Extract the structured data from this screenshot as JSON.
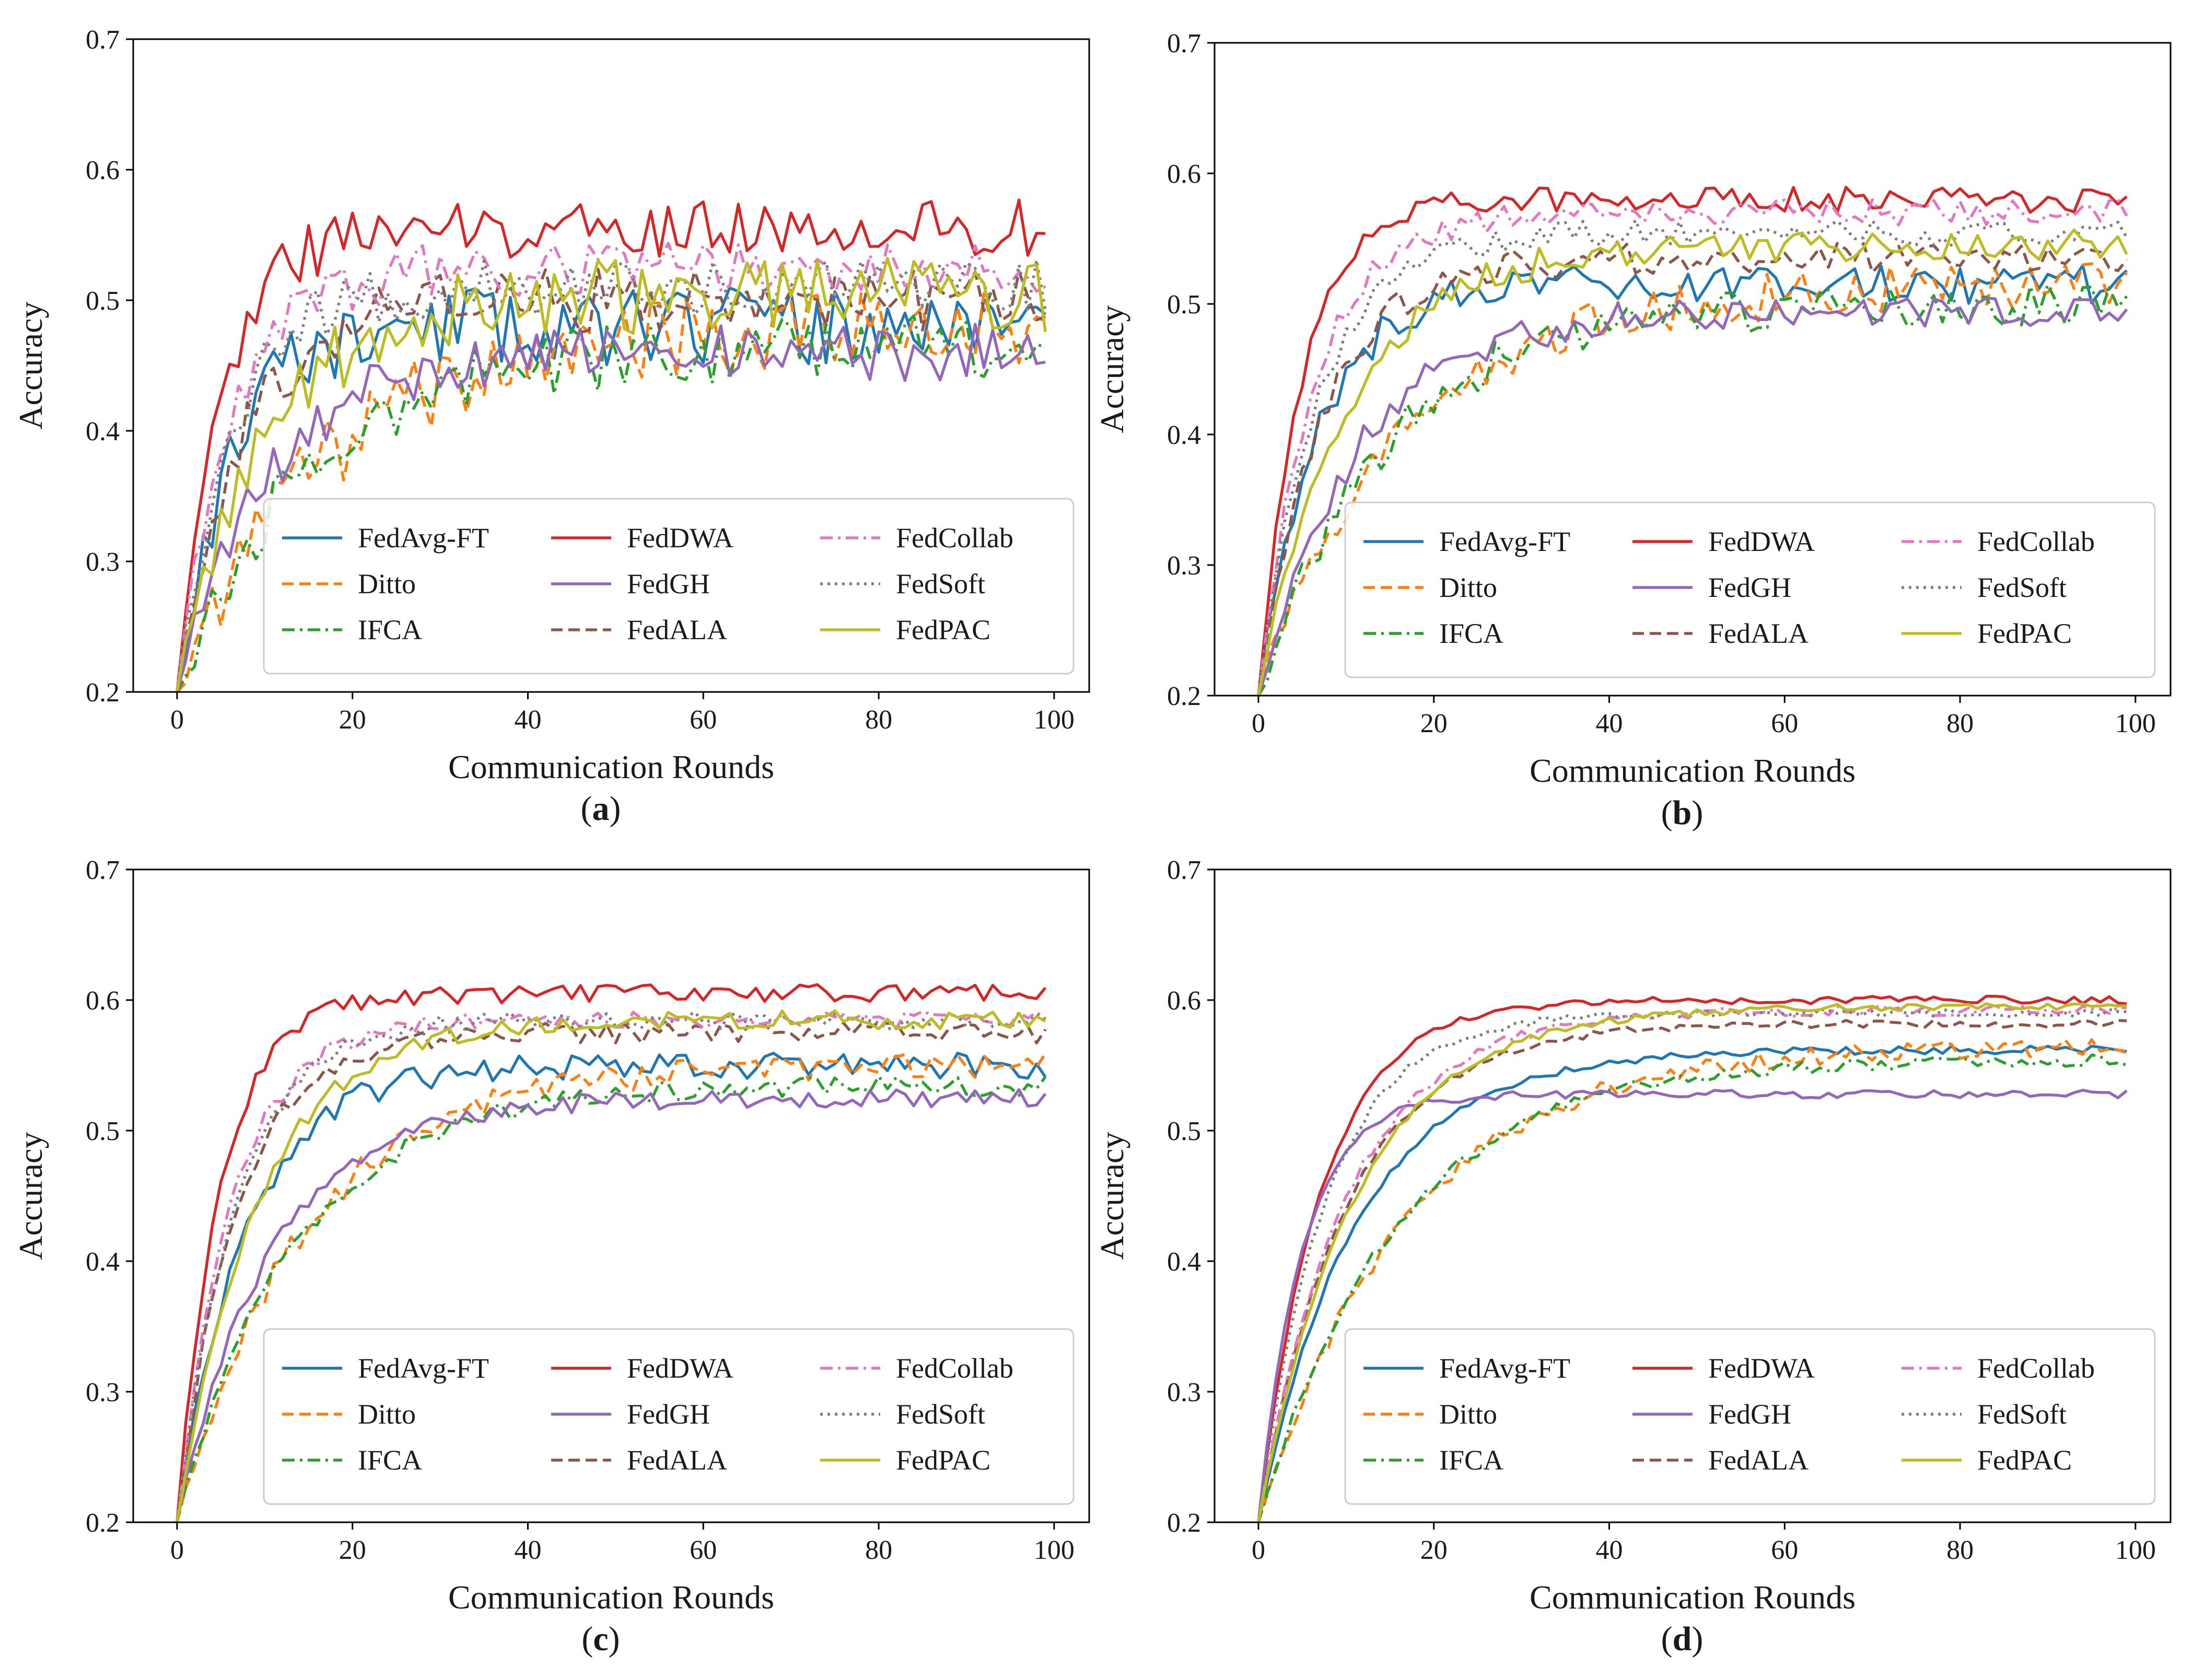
{
  "colors": {
    "FedAvg-FT": "#1f77b4",
    "Ditto": "#ff7f0e",
    "IFCA": "#2ca02c",
    "FedDWA": "#d62728",
    "FedGH": "#9467bd",
    "FedALA": "#8c564b",
    "FedCollab": "#e377c2",
    "FedSoft": "#7f7f7f",
    "FedPAC": "#bcbd22"
  },
  "chart_data": [
    {
      "type": "line",
      "panel": "a",
      "caption_letter": "a",
      "xlabel": "Communication Rounds",
      "ylabel": "Accuracy",
      "xlim": [
        -5,
        104
      ],
      "ylim": [
        0.2,
        0.7
      ],
      "xticks": [
        "0",
        "20",
        "40",
        "60",
        "80",
        "100"
      ],
      "yticks": [
        "0.2",
        "0.3",
        "0.4",
        "0.5",
        "0.6",
        "0.7"
      ],
      "legend": {
        "location": "lower-right",
        "columns": 3
      },
      "series": [
        {
          "name": "FedAvg-FT",
          "style": "solid",
          "start": 0.2,
          "final": 0.48,
          "rate": 0.16,
          "noise": 0.03,
          "seed": 11
        },
        {
          "name": "Ditto",
          "style": "dashed",
          "start": 0.2,
          "final": 0.48,
          "rate": 0.06,
          "noise": 0.03,
          "seed": 12
        },
        {
          "name": "IFCA",
          "style": "dashdot",
          "start": 0.2,
          "final": 0.465,
          "rate": 0.07,
          "noise": 0.025,
          "seed": 13
        },
        {
          "name": "FedDWA",
          "style": "solid",
          "start": 0.2,
          "final": 0.555,
          "rate": 0.2,
          "noise": 0.022,
          "seed": 14
        },
        {
          "name": "FedGH",
          "style": "solid",
          "start": 0.2,
          "final": 0.46,
          "rate": 0.1,
          "noise": 0.022,
          "seed": 15
        },
        {
          "name": "FedALA",
          "style": "dashed",
          "start": 0.2,
          "final": 0.5,
          "rate": 0.14,
          "noise": 0.025,
          "seed": 16
        },
        {
          "name": "FedCollab",
          "style": "dashdot",
          "start": 0.2,
          "final": 0.525,
          "rate": 0.17,
          "noise": 0.022,
          "seed": 17
        },
        {
          "name": "FedSoft",
          "style": "dotted",
          "start": 0.2,
          "final": 0.51,
          "rate": 0.16,
          "noise": 0.022,
          "seed": 18
        },
        {
          "name": "FedPAC",
          "style": "solid",
          "start": 0.2,
          "final": 0.505,
          "rate": 0.1,
          "noise": 0.03,
          "seed": 19
        }
      ]
    },
    {
      "type": "line",
      "panel": "b",
      "caption_letter": "b",
      "xlabel": "Communication Rounds",
      "ylabel": "Accuracy",
      "xlim": [
        -5,
        104
      ],
      "ylim": [
        0.2,
        0.7
      ],
      "xticks": [
        "0",
        "20",
        "40",
        "60",
        "80",
        "100"
      ],
      "yticks": [
        "0.2",
        "0.3",
        "0.4",
        "0.5",
        "0.6",
        "0.7"
      ],
      "legend": {
        "location": "lower-right",
        "columns": 3
      },
      "series": [
        {
          "name": "FedAvg-FT",
          "style": "solid",
          "start": 0.2,
          "final": 0.515,
          "rate": 0.15,
          "noise": 0.015,
          "seed": 21
        },
        {
          "name": "Ditto",
          "style": "dashed",
          "start": 0.2,
          "final": 0.515,
          "rate": 0.06,
          "noise": 0.018,
          "seed": 22
        },
        {
          "name": "IFCA",
          "style": "dashdot",
          "start": 0.2,
          "final": 0.5,
          "rate": 0.07,
          "noise": 0.016,
          "seed": 23
        },
        {
          "name": "FedDWA",
          "style": "solid",
          "start": 0.2,
          "final": 0.58,
          "rate": 0.2,
          "noise": 0.01,
          "seed": 24
        },
        {
          "name": "FedGH",
          "style": "solid",
          "start": 0.2,
          "final": 0.495,
          "rate": 0.09,
          "noise": 0.013,
          "seed": 25
        },
        {
          "name": "FedALA",
          "style": "dashed",
          "start": 0.2,
          "final": 0.535,
          "rate": 0.14,
          "noise": 0.012,
          "seed": 26
        },
        {
          "name": "FedCollab",
          "style": "dashdot",
          "start": 0.2,
          "final": 0.57,
          "rate": 0.16,
          "noise": 0.01,
          "seed": 27
        },
        {
          "name": "FedSoft",
          "style": "dotted",
          "start": 0.2,
          "final": 0.555,
          "rate": 0.15,
          "noise": 0.01,
          "seed": 28
        },
        {
          "name": "FedPAC",
          "style": "solid",
          "start": 0.2,
          "final": 0.545,
          "rate": 0.1,
          "noise": 0.012,
          "seed": 29
        }
      ]
    },
    {
      "type": "line",
      "panel": "c",
      "caption_letter": "c",
      "xlabel": "Communication Rounds",
      "ylabel": "Accuracy",
      "xlim": [
        -5,
        104
      ],
      "ylim": [
        0.2,
        0.7
      ],
      "xticks": [
        "0",
        "20",
        "40",
        "60",
        "80",
        "100"
      ],
      "yticks": [
        "0.2",
        "0.3",
        "0.4",
        "0.5",
        "0.6",
        "0.7"
      ],
      "legend": {
        "location": "lower-right",
        "columns": 3
      },
      "series": [
        {
          "name": "FedAvg-FT",
          "style": "solid",
          "start": 0.2,
          "final": 0.55,
          "rate": 0.13,
          "noise": 0.01,
          "seed": 31
        },
        {
          "name": "Ditto",
          "style": "dashed",
          "start": 0.2,
          "final": 0.55,
          "rate": 0.07,
          "noise": 0.01,
          "seed": 32
        },
        {
          "name": "IFCA",
          "style": "dashdot",
          "start": 0.2,
          "final": 0.535,
          "rate": 0.075,
          "noise": 0.008,
          "seed": 33
        },
        {
          "name": "FedDWA",
          "style": "solid",
          "start": 0.2,
          "final": 0.605,
          "rate": 0.2,
          "noise": 0.007,
          "seed": 34
        },
        {
          "name": "FedGH",
          "style": "solid",
          "start": 0.2,
          "final": 0.525,
          "rate": 0.095,
          "noise": 0.007,
          "seed": 35
        },
        {
          "name": "FedALA",
          "style": "dashed",
          "start": 0.2,
          "final": 0.575,
          "rate": 0.15,
          "noise": 0.008,
          "seed": 36
        },
        {
          "name": "FedCollab",
          "style": "dashdot",
          "start": 0.2,
          "final": 0.585,
          "rate": 0.16,
          "noise": 0.007,
          "seed": 37
        },
        {
          "name": "FedSoft",
          "style": "dotted",
          "start": 0.2,
          "final": 0.585,
          "rate": 0.15,
          "noise": 0.007,
          "seed": 38
        },
        {
          "name": "FedPAC",
          "style": "solid",
          "start": 0.2,
          "final": 0.585,
          "rate": 0.11,
          "noise": 0.007,
          "seed": 39
        }
      ]
    },
    {
      "type": "line",
      "panel": "d",
      "caption_letter": "d",
      "xlabel": "Communication Rounds",
      "ylabel": "Accuracy",
      "xlim": [
        -5,
        104
      ],
      "ylim": [
        0.2,
        0.7
      ],
      "xticks": [
        "0",
        "20",
        "40",
        "60",
        "80",
        "100"
      ],
      "yticks": [
        "0.2",
        "0.3",
        "0.4",
        "0.5",
        "0.6",
        "0.7"
      ],
      "legend": {
        "location": "lower-right",
        "columns": 3
      },
      "series": [
        {
          "name": "FedAvg-FT",
          "style": "solid",
          "start": 0.2,
          "final": 0.562,
          "rate": 0.09,
          "noise": 0.003,
          "seed": 41
        },
        {
          "name": "Ditto",
          "style": "dashed",
          "start": 0.2,
          "final": 0.565,
          "rate": 0.06,
          "noise": 0.007,
          "seed": 42
        },
        {
          "name": "IFCA",
          "style": "dashdot",
          "start": 0.2,
          "final": 0.555,
          "rate": 0.065,
          "noise": 0.005,
          "seed": 43
        },
        {
          "name": "FedDWA",
          "style": "solid",
          "start": 0.2,
          "final": 0.6,
          "rate": 0.14,
          "noise": 0.003,
          "seed": 44
        },
        {
          "name": "FedGH",
          "style": "solid",
          "start": 0.2,
          "final": 0.528,
          "rate": 0.2,
          "noise": 0.003,
          "seed": 45
        },
        {
          "name": "FedALA",
          "style": "dashed",
          "start": 0.2,
          "final": 0.582,
          "rate": 0.1,
          "noise": 0.003,
          "seed": 46
        },
        {
          "name": "FedCollab",
          "style": "dashdot",
          "start": 0.2,
          "final": 0.592,
          "rate": 0.1,
          "noise": 0.004,
          "seed": 47
        },
        {
          "name": "FedSoft",
          "style": "dotted",
          "start": 0.2,
          "final": 0.59,
          "rate": 0.13,
          "noise": 0.003,
          "seed": 48
        },
        {
          "name": "FedPAC",
          "style": "solid",
          "start": 0.2,
          "final": 0.595,
          "rate": 0.09,
          "noise": 0.003,
          "seed": 49
        }
      ]
    }
  ]
}
